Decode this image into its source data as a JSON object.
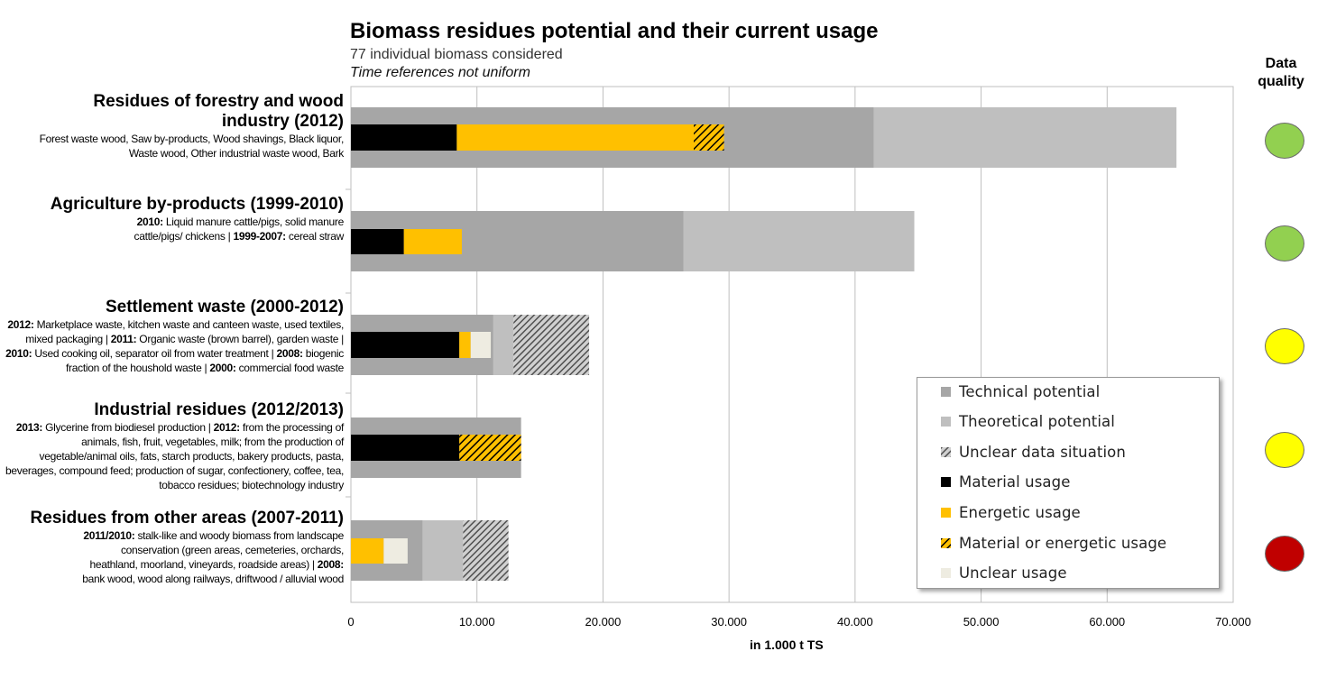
{
  "chart_data": {
    "type": "bar",
    "orientation": "horizontal",
    "stacked": true,
    "title": "Biomass residues potential and their current usage",
    "subtitle": "77 individual biomass considered",
    "note": "Time references not uniform",
    "xlabel": "in 1.000 t TS",
    "xlim": [
      0,
      70000
    ],
    "x_ticks": [
      "0",
      "10.000",
      "20.000",
      "30.000",
      "40.000",
      "50.000",
      "60.000",
      "70.000"
    ],
    "grid": "vertical",
    "legend_position": "bottom-right",
    "data_quality_label": "Data quality",
    "series_legend": [
      {
        "key": "technical",
        "name": "Technical potential",
        "color": "#a6a6a6"
      },
      {
        "key": "theoretical",
        "name": "Theoretical potential",
        "color": "#bfbfbf"
      },
      {
        "key": "unclear_data",
        "name": "Unclear data situation",
        "color": "#a6a6a6",
        "pattern": "hatch-grey"
      },
      {
        "key": "material",
        "name": "Material usage",
        "color": "#000000"
      },
      {
        "key": "energetic",
        "name": "Energetic usage",
        "color": "#ffc000"
      },
      {
        "key": "mat_or_en",
        "name": "Material or energetic usage",
        "color": "#ffc000",
        "pattern": "hatch-yellow"
      },
      {
        "key": "unclear_usage",
        "name": "Unclear usage",
        "color": "#eeece1"
      }
    ],
    "categories": [
      {
        "title": "Residues of forestry and wood industry (2012)",
        "description": [
          {
            "t": "Forest waste wood, Saw by-products, Wood shavings, Black liquor, Waste wood, Other industrial waste wood, Bark",
            "b": false
          }
        ],
        "data_quality": "green",
        "potential": [
          {
            "key": "technical",
            "from": 0,
            "to": 41500
          },
          {
            "key": "theoretical",
            "from": 41500,
            "to": 65500
          }
        ],
        "usage": [
          {
            "key": "material",
            "from": 0,
            "to": 8400
          },
          {
            "key": "energetic",
            "from": 8400,
            "to": 27200
          },
          {
            "key": "mat_or_en",
            "from": 27200,
            "to": 29600
          }
        ]
      },
      {
        "title": "Agriculture by-products (1999-2010)",
        "description": [
          {
            "t": "2010:",
            "b": true
          },
          {
            "t": " Liquid manure cattle/pigs, solid manure cattle/pigs/ chickens | ",
            "b": false
          },
          {
            "t": "1999-2007:",
            "b": true
          },
          {
            "t": " cereal straw",
            "b": false
          }
        ],
        "data_quality": "green",
        "potential": [
          {
            "key": "technical",
            "from": 0,
            "to": 26400
          },
          {
            "key": "theoretical",
            "from": 26400,
            "to": 44700
          }
        ],
        "usage": [
          {
            "key": "material",
            "from": 0,
            "to": 4200
          },
          {
            "key": "energetic",
            "from": 4200,
            "to": 8800
          }
        ]
      },
      {
        "title": "Settlement waste (2000-2012)",
        "description": [
          {
            "t": "2012:",
            "b": true
          },
          {
            "t": " Marketplace waste, kitchen waste and canteen waste, used textiles, mixed packaging | ",
            "b": false
          },
          {
            "t": "2011:",
            "b": true
          },
          {
            "t": " Organic waste (brown barrel), garden waste | ",
            "b": false
          },
          {
            "t": "2010:",
            "b": true
          },
          {
            "t": " Used cooking oil, separator oil from water treatment | ",
            "b": false
          },
          {
            "t": "2008:",
            "b": true
          },
          {
            "t": " biogenic fraction of the houshold waste | ",
            "b": false
          },
          {
            "t": "2000:",
            "b": true
          },
          {
            "t": " commercial food waste",
            "b": false
          }
        ],
        "data_quality": "yellow",
        "potential": [
          {
            "key": "technical",
            "from": 0,
            "to": 11300
          },
          {
            "key": "theoretical",
            "from": 11300,
            "to": 12900
          },
          {
            "key": "unclear_data",
            "from": 12900,
            "to": 18900
          }
        ],
        "usage": [
          {
            "key": "material",
            "from": 0,
            "to": 8600
          },
          {
            "key": "energetic",
            "from": 8600,
            "to": 9500
          },
          {
            "key": "unclear_usage",
            "from": 9500,
            "to": 11100
          }
        ]
      },
      {
        "title": "Industrial residues (2012/2013)",
        "description": [
          {
            "t": "2013:",
            "b": true
          },
          {
            "t": " Glycerine from biodiesel production | ",
            "b": false
          },
          {
            "t": "2012:",
            "b": true
          },
          {
            "t": " from the processing of animals, fish, fruit, vegetables, milk; from the production of vegetable/animal oils, fats, starch products, bakery products, pasta, beverages, compound feed; production of sugar, confectionery, coffee, tea, tobacco residues; biotechnology industry",
            "b": false
          }
        ],
        "data_quality": "yellow",
        "potential": [
          {
            "key": "technical",
            "from": 0,
            "to": 13500
          }
        ],
        "usage": [
          {
            "key": "material",
            "from": 0,
            "to": 8600
          },
          {
            "key": "mat_or_en",
            "from": 8600,
            "to": 13500
          }
        ]
      },
      {
        "title": "Residues from other areas (2007-2011)",
        "description": [
          {
            "t": "2011/2010:",
            "b": true
          },
          {
            "t": " stalk-like and woody biomass from landscape conservation (green areas, cemeteries, orchards, heathland, moorland, vineyards, roadside areas) | ",
            "b": false
          },
          {
            "t": "2008:",
            "b": true
          },
          {
            "t": " bank wood, wood along railways,  driftwood / alluvial wood",
            "b": false
          }
        ],
        "data_quality": "red",
        "potential": [
          {
            "key": "technical",
            "from": 0,
            "to": 5700
          },
          {
            "key": "theoretical",
            "from": 5700,
            "to": 8900
          },
          {
            "key": "unclear_data",
            "from": 8900,
            "to": 12500
          }
        ],
        "usage": [
          {
            "key": "energetic",
            "from": 0,
            "to": 2600
          },
          {
            "key": "unclear_usage",
            "from": 2600,
            "to": 4500
          }
        ]
      }
    ],
    "quality_colors": {
      "green": "#92d050",
      "yellow": "#ffff00",
      "red": "#c00000"
    }
  }
}
